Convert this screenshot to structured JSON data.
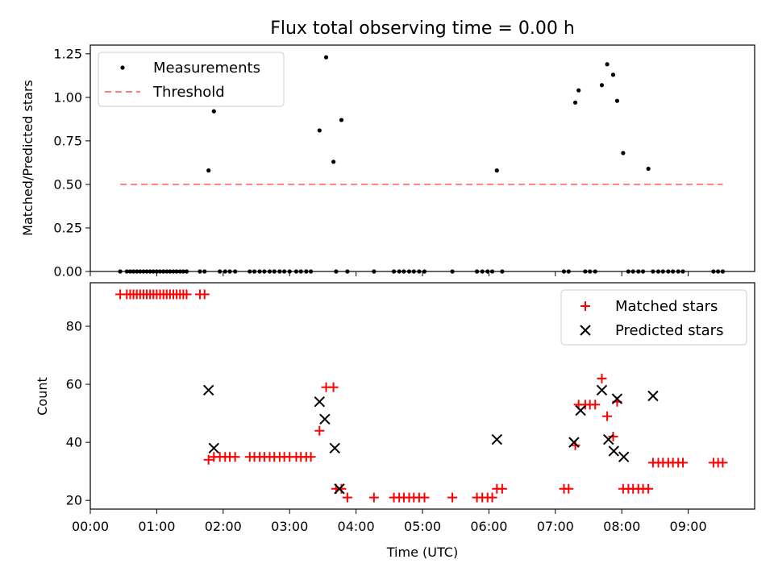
{
  "chart_data": [
    {
      "type": "scatter",
      "title": "Flux total observing time = 0.00 h",
      "xlabel": "",
      "ylabel": "Matched/Predicted stars",
      "xlim": [
        0,
        10
      ],
      "ylim": [
        0,
        1.3
      ],
      "y_ticks": [
        0.0,
        0.25,
        0.5,
        0.75,
        1.0,
        1.25
      ],
      "y_tick_labels": [
        "0.00",
        "0.25",
        "0.50",
        "0.75",
        "1.00",
        "1.25"
      ],
      "legend": {
        "placement": "upper-left",
        "entries": [
          "Measurements",
          "Threshold"
        ]
      },
      "series": [
        {
          "name": "Measurements",
          "color": "#000000",
          "marker": "dot",
          "x": [
            0.45,
            0.55,
            0.6,
            0.65,
            0.7,
            0.75,
            0.8,
            0.85,
            0.9,
            0.95,
            1.0,
            1.05,
            1.1,
            1.15,
            1.2,
            1.25,
            1.3,
            1.35,
            1.4,
            1.45,
            1.65,
            1.72,
            1.78,
            1.86,
            1.95,
            2.03,
            2.1,
            2.18,
            2.4,
            2.47,
            2.55,
            2.62,
            2.7,
            2.77,
            2.85,
            2.92,
            3.0,
            3.1,
            3.17,
            3.25,
            3.32,
            3.45,
            3.55,
            3.66,
            3.7,
            3.78,
            3.87,
            4.27,
            4.57,
            4.65,
            4.72,
            4.8,
            4.87,
            4.95,
            5.03,
            5.45,
            5.82,
            5.9,
            5.98,
            6.05,
            6.12,
            6.2,
            7.13,
            7.2,
            7.3,
            7.35,
            7.45,
            7.52,
            7.6,
            7.7,
            7.78,
            7.87,
            7.93,
            8.02,
            8.1,
            8.17,
            8.25,
            8.32,
            8.4,
            8.47,
            8.55,
            8.62,
            8.7,
            8.77,
            8.85,
            8.92,
            9.38,
            9.45,
            9.52
          ],
          "y": [
            0,
            0,
            0,
            0,
            0,
            0,
            0,
            0,
            0,
            0,
            0,
            0,
            0,
            0,
            0,
            0,
            0,
            0,
            0,
            0,
            0,
            0,
            0.58,
            0.92,
            0,
            0,
            0,
            0,
            0,
            0,
            0,
            0,
            0,
            0,
            0,
            0,
            0,
            0,
            0,
            0,
            0,
            0.81,
            1.23,
            0.63,
            0,
            0.87,
            0,
            0,
            0,
            0,
            0,
            0,
            0,
            0,
            0,
            0,
            0,
            0,
            0,
            0,
            0.58,
            0,
            0,
            0,
            0.97,
            1.04,
            0,
            0,
            0,
            1.07,
            1.19,
            1.13,
            0.98,
            0.68,
            0,
            0,
            0,
            0,
            0.59,
            0,
            0,
            0,
            0,
            0,
            0,
            0,
            0,
            0,
            0
          ]
        },
        {
          "name": "Threshold",
          "color": "#ff7f7f",
          "style": "dashed",
          "x": [
            0.45,
            9.52
          ],
          "y": [
            0.5,
            0.5
          ]
        }
      ]
    },
    {
      "type": "scatter",
      "title": "",
      "xlabel": "Time (UTC)",
      "ylabel": "Count",
      "xlim": [
        0,
        10
      ],
      "ylim": [
        17,
        95
      ],
      "y_ticks": [
        20,
        40,
        60,
        80
      ],
      "y_tick_labels": [
        "20",
        "40",
        "60",
        "80"
      ],
      "x_ticks": [
        0,
        1,
        2,
        3,
        4,
        5,
        6,
        7,
        8,
        9
      ],
      "x_tick_labels": [
        "00:00",
        "01:00",
        "02:00",
        "03:00",
        "04:00",
        "05:00",
        "06:00",
        "07:00",
        "08:00",
        "09:00"
      ],
      "legend": {
        "placement": "upper-right",
        "entries": [
          "Matched stars",
          "Predicted stars"
        ]
      },
      "series": [
        {
          "name": "Matched stars",
          "color": "#ff0000",
          "marker": "plus",
          "x": [
            0.45,
            0.55,
            0.6,
            0.65,
            0.7,
            0.75,
            0.8,
            0.85,
            0.9,
            0.95,
            1.0,
            1.05,
            1.1,
            1.15,
            1.2,
            1.25,
            1.3,
            1.35,
            1.4,
            1.45,
            1.65,
            1.72,
            1.78,
            1.86,
            1.95,
            2.03,
            2.1,
            2.18,
            2.4,
            2.47,
            2.55,
            2.62,
            2.7,
            2.77,
            2.85,
            2.92,
            3.0,
            3.1,
            3.17,
            3.25,
            3.32,
            3.45,
            3.55,
            3.66,
            3.7,
            3.78,
            3.87,
            4.27,
            4.57,
            4.65,
            4.72,
            4.8,
            4.87,
            4.95,
            5.03,
            5.45,
            5.82,
            5.9,
            5.98,
            6.05,
            6.12,
            6.2,
            7.13,
            7.2,
            7.3,
            7.35,
            7.45,
            7.52,
            7.6,
            7.7,
            7.78,
            7.87,
            7.93,
            8.02,
            8.1,
            8.17,
            8.25,
            8.32,
            8.4,
            8.47,
            8.55,
            8.62,
            8.7,
            8.77,
            8.85,
            8.92,
            9.38,
            9.45,
            9.52
          ],
          "y": [
            91,
            91,
            91,
            91,
            91,
            91,
            91,
            91,
            91,
            91,
            91,
            91,
            91,
            91,
            91,
            91,
            91,
            91,
            91,
            91,
            91,
            91,
            34,
            35,
            35,
            35,
            35,
            35,
            35,
            35,
            35,
            35,
            35,
            35,
            35,
            35,
            35,
            35,
            35,
            35,
            35,
            44,
            59,
            59,
            24,
            24,
            21,
            21,
            21,
            21,
            21,
            21,
            21,
            21,
            21,
            21,
            21,
            21,
            21,
            21,
            24,
            24,
            24,
            24,
            39,
            53,
            53,
            53,
            53,
            62,
            49,
            42,
            54,
            24,
            24,
            24,
            24,
            24,
            24,
            33,
            33,
            33,
            33,
            33,
            33,
            33,
            33,
            33,
            33
          ]
        },
        {
          "name": "Predicted stars",
          "color": "#000000",
          "marker": "x",
          "x": [
            1.78,
            1.86,
            3.45,
            3.53,
            3.68,
            3.75,
            6.12,
            7.28,
            7.38,
            7.7,
            7.8,
            7.88,
            7.93,
            8.03,
            8.47
          ],
          "y": [
            58,
            38,
            54,
            48,
            38,
            24,
            41,
            40,
            51,
            58,
            41,
            37,
            55,
            35,
            56
          ]
        }
      ]
    }
  ]
}
